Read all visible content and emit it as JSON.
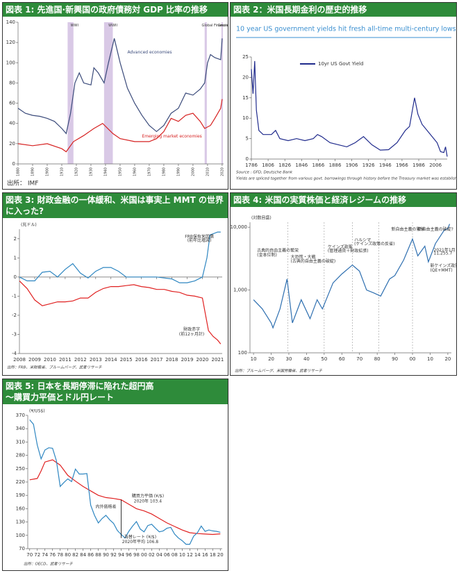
{
  "chart_data": [
    {
      "type": "line",
      "title": "図表 1: 先進国·新興国の政府債務対 GDP 比率の推移",
      "source": "出所： IMF",
      "annotations": [
        "WWI",
        "WWII",
        "Global Financial Crisis",
        "Great Lockdown"
      ],
      "ylim": [
        0,
        140
      ],
      "yticks": [
        0,
        20,
        40,
        60,
        80,
        100,
        120,
        140
      ],
      "xlim": [
        1880,
        2021
      ],
      "xticks": [
        1880,
        1890,
        1900,
        1910,
        1920,
        1930,
        1940,
        1950,
        1960,
        1970,
        1980,
        1990,
        2000,
        2010,
        2020
      ],
      "series": [
        {
          "name": "Advanced economies",
          "color": "#3a4a7a",
          "x": [
            1880,
            1885,
            1890,
            1895,
            1900,
            1905,
            1910,
            1913,
            1916,
            1919,
            1922,
            1925,
            1930,
            1932,
            1935,
            1939,
            1942,
            1946,
            1950,
            1955,
            1960,
            1965,
            1970,
            1975,
            1980,
            1985,
            1990,
            1995,
            2000,
            2005,
            2008,
            2010,
            2012,
            2015,
            2019,
            2020
          ],
          "values": [
            55,
            50,
            48,
            47,
            45,
            42,
            35,
            30,
            50,
            80,
            90,
            80,
            78,
            95,
            90,
            80,
            100,
            124,
            100,
            75,
            60,
            48,
            38,
            32,
            38,
            50,
            55,
            70,
            68,
            74,
            80,
            100,
            108,
            105,
            103,
            124
          ]
        },
        {
          "name": "Emerging market economies",
          "color": "#d62020",
          "x": [
            1880,
            1890,
            1900,
            1910,
            1913,
            1918,
            1925,
            1932,
            1938,
            1945,
            1950,
            1960,
            1970,
            1975,
            1980,
            1985,
            1990,
            1995,
            2000,
            2005,
            2008,
            2012,
            2015,
            2019,
            2020
          ],
          "values": [
            20,
            18,
            20,
            15,
            12,
            22,
            28,
            35,
            40,
            30,
            25,
            22,
            22,
            25,
            32,
            45,
            42,
            48,
            50,
            42,
            35,
            38,
            45,
            55,
            64
          ]
        }
      ]
    },
    {
      "type": "line",
      "title": "図表 2：米国長期金利の歴史的推移",
      "subtitle": "10 year US government yields hit fresh all-time multi-century lows overnight",
      "source": "Source : GFD, Deutsche Bank",
      "note": "Yields are spliced together from various govt. borrowings through history before the Treasury market was established.",
      "ylim": [
        0,
        25
      ],
      "yticks": [
        0,
        5,
        10,
        15,
        20,
        25
      ],
      "xlim": [
        1786,
        2020
      ],
      "xticks": [
        1786,
        1806,
        1826,
        1846,
        1866,
        1886,
        1906,
        1926,
        1946,
        1966,
        1986,
        2006
      ],
      "series": [
        {
          "name": "10yr US Govt Yield",
          "color": "#1f2a8c",
          "x": [
            1786,
            1788,
            1790,
            1792,
            1795,
            1800,
            1810,
            1815,
            1820,
            1830,
            1840,
            1850,
            1860,
            1865,
            1870,
            1880,
            1890,
            1900,
            1910,
            1920,
            1930,
            1940,
            1950,
            1960,
            1970,
            1975,
            1981,
            1985,
            1990,
            2000,
            2008,
            2012,
            2016,
            2018,
            2020
          ],
          "values": [
            22,
            16,
            24,
            12,
            7,
            6,
            6,
            7,
            5,
            4.5,
            5,
            4.5,
            5,
            6,
            5.5,
            4,
            3.5,
            3,
            4,
            5.5,
            3.5,
            2.2,
            2.3,
            4,
            7,
            8,
            15,
            11,
            8.5,
            6,
            4,
            1.8,
            1.6,
            3,
            0.6
          ]
        }
      ]
    },
    {
      "type": "line",
      "title": "図表 3: 財政金融の一体緩和、米国は事実上 MMT の世界に入った?",
      "y_unit": "(兆ドル)",
      "annotations": [
        "(前年比増減)",
        "(前12ヶ月計)"
      ],
      "source": "出所：FRB、米財務省、ブルームバーグ、武者リサーチ",
      "ylim": [
        -4,
        2.5
      ],
      "yticks": [
        -4,
        -3,
        -2,
        -1,
        0,
        1,
        2
      ],
      "xlim": [
        2008,
        2021.3
      ],
      "xticks": [
        2008,
        2009,
        2010,
        2011,
        2012,
        2013,
        2014,
        2015,
        2016,
        2017,
        2018,
        2019,
        2020,
        2021
      ],
      "series": [
        {
          "name": "FRB保有米国債",
          "color": "#2e86c1",
          "x": [
            2008,
            2008.5,
            2009,
            2009.5,
            2010,
            2010.5,
            2011,
            2011.5,
            2012,
            2012.5,
            2013,
            2013.5,
            2014,
            2014.5,
            2015,
            2015.5,
            2016,
            2017,
            2018,
            2018.5,
            2019,
            2019.5,
            2020,
            2020.3,
            2020.5,
            2021,
            2021.2
          ],
          "values": [
            0,
            -0.2,
            -0.2,
            0.25,
            0.3,
            0,
            0.4,
            0.7,
            0.2,
            -0.05,
            0.3,
            0.5,
            0.5,
            0.3,
            0,
            0,
            0,
            0,
            -0.1,
            -0.3,
            -0.3,
            -0.2,
            0,
            1,
            2.2,
            2.35,
            2.35
          ]
        },
        {
          "name": "財政赤字",
          "color": "#e02020",
          "x": [
            2008,
            2008.5,
            2009,
            2009.5,
            2010,
            2010.5,
            2011,
            2011.5,
            2012,
            2012.5,
            2013,
            2013.5,
            2014,
            2014.5,
            2015,
            2015.5,
            2016,
            2016.5,
            2017,
            2017.5,
            2018,
            2018.5,
            2019,
            2019.5,
            2020,
            2020.4,
            2020.7,
            2021,
            2021.2
          ],
          "values": [
            -0.2,
            -0.6,
            -1.2,
            -1.5,
            -1.4,
            -1.3,
            -1.3,
            -1.25,
            -1.1,
            -1.1,
            -0.8,
            -0.6,
            -0.5,
            -0.5,
            -0.45,
            -0.4,
            -0.5,
            -0.55,
            -0.65,
            -0.65,
            -0.75,
            -0.8,
            -0.95,
            -1.0,
            -1.1,
            -2.8,
            -3.1,
            -3.3,
            -3.5
          ]
        }
      ]
    },
    {
      "type": "line",
      "title": "図表 4: 米国の実質株価と経済レジームの推移",
      "y_unit": "(対数目盛)",
      "log_y": true,
      "annotations": [
        "古典的自由主義の繁栄",
        "(金本位制)",
        "大恐慌・大戦",
        "(古典的自由主義の破綻)",
        "ケインズ政策",
        "(管理通貨＋財政拡張)",
        "ハルシマ",
        "(ケインズ政策の反省)",
        "新自由主義の繁栄",
        "新自由主義の破綻?",
        "新ケインズ政策?",
        "(QE+MMT)",
        "2021年1月",
        "11,255.7"
      ],
      "source": "出所：ブルームバーグ、米国労働省、武者リサーチ",
      "ylim": [
        100,
        12000
      ],
      "yticks": [
        100,
        {
          "value": 1000,
          "label": "1,000"
        },
        {
          "value": 10000,
          "label": "10,000"
        }
      ],
      "xlim": [
        1908,
        2022
      ],
      "xticks": [
        {
          "value": 1910,
          "label": "10"
        },
        {
          "value": 1920,
          "label": "20"
        },
        {
          "value": 1930,
          "label": "30"
        },
        {
          "value": 1940,
          "label": "40"
        },
        {
          "value": 1950,
          "label": "50"
        },
        {
          "value": 1960,
          "label": "60"
        },
        {
          "value": 1970,
          "label": "70"
        },
        {
          "value": 1980,
          "label": "80"
        },
        {
          "value": 1990,
          "label": "90"
        },
        {
          "value": 2000,
          "label": "00"
        },
        {
          "value": 2010,
          "label": "10"
        },
        {
          "value": 2020,
          "label": "20"
        }
      ],
      "series": [
        {
          "color": "#2e6fb0",
          "x": [
            1910,
            1915,
            1920,
            1921,
            1925,
            1929,
            1932,
            1937,
            1942,
            1946,
            1949,
            1955,
            1960,
            1966,
            1970,
            1974,
            1978,
            1982,
            1987,
            1990,
            1995,
            2000,
            2003,
            2007,
            2009,
            2013,
            2018,
            2020,
            2021
          ],
          "values": [
            700,
            500,
            300,
            250,
            500,
            1500,
            300,
            700,
            350,
            700,
            500,
            1300,
            1800,
            2500,
            2000,
            1000,
            900,
            800,
            1500,
            1700,
            3000,
            6500,
            3500,
            5000,
            2800,
            5500,
            9000,
            9500,
            11255.7
          ]
        }
      ]
    },
    {
      "type": "line",
      "title": "図表 5: 日本を長期停滞に陥れた超円高\n～購買力平価とドル円レート",
      "y_unit": "(¥/US$)",
      "annotations": [
        "2020年 103.4",
        "内外価格差",
        "2020年平均 106.8"
      ],
      "source": "出所：OECD、武者リサーチ",
      "ylim": [
        70,
        370
      ],
      "yticks": [
        70,
        100,
        130,
        160,
        190,
        220,
        250,
        280,
        310,
        340,
        370
      ],
      "xlim": [
        1969.5,
        2020.5
      ],
      "xticks": [
        {
          "value": 1970,
          "label": "70"
        },
        {
          "value": 1972,
          "label": "72"
        },
        {
          "value": 1974,
          "label": "74"
        },
        {
          "value": 1976,
          "label": "76"
        },
        {
          "value": 1978,
          "label": "78"
        },
        {
          "value": 1980,
          "label": "80"
        },
        {
          "value": 1982,
          "label": "82"
        },
        {
          "value": 1984,
          "label": "84"
        },
        {
          "value": 1986,
          "label": "86"
        },
        {
          "value": 1988,
          "label": "88"
        },
        {
          "value": 1990,
          "label": "90"
        },
        {
          "value": 1992,
          "label": "92"
        },
        {
          "value": 1994,
          "label": "94"
        },
        {
          "value": 1996,
          "label": "96"
        },
        {
          "value": 1998,
          "label": "98"
        },
        {
          "value": 2000,
          "label": "00"
        },
        {
          "value": 2002,
          "label": "02"
        },
        {
          "value": 2004,
          "label": "04"
        },
        {
          "value": 2006,
          "label": "06"
        },
        {
          "value": 2008,
          "label": "08"
        },
        {
          "value": 2010,
          "label": "10"
        },
        {
          "value": 2012,
          "label": "12"
        },
        {
          "value": 2014,
          "label": "14"
        },
        {
          "value": 2016,
          "label": "16"
        },
        {
          "value": 2018,
          "label": "18"
        },
        {
          "value": 2020,
          "label": "20"
        }
      ],
      "series": [
        {
          "name": "購買力平価 (¥/$)",
          "color": "#e02020",
          "x": [
            1970,
            1972,
            1973,
            1974,
            1976,
            1978,
            1980,
            1982,
            1984,
            1986,
            1988,
            1990,
            1992,
            1994,
            1996,
            1998,
            2000,
            2002,
            2004,
            2006,
            2008,
            2010,
            2012,
            2014,
            2016,
            2018,
            2020
          ],
          "values": [
            225,
            228,
            245,
            265,
            270,
            258,
            235,
            222,
            210,
            200,
            190,
            185,
            183,
            180,
            170,
            160,
            155,
            148,
            138,
            128,
            120,
            112,
            106,
            104,
            103,
            102,
            103.4
          ]
        },
        {
          "name": "為替レート (¥/$)",
          "color": "#2e86c1",
          "x": [
            1970,
            1971,
            1972,
            1973,
            1974,
            1975,
            1976,
            1977,
            1978,
            1979,
            1980,
            1981,
            1982,
            1983,
            1984,
            1985,
            1986,
            1987,
            1988,
            1989,
            1990,
            1991,
            1992,
            1993,
            1994,
            1995,
            1996,
            1997,
            1998,
            1999,
            2000,
            2001,
            2002,
            2003,
            2004,
            2005,
            2006,
            2007,
            2008,
            2009,
            2010,
            2011,
            2012,
            2013,
            2014,
            2015,
            2016,
            2017,
            2018,
            2019,
            2020
          ],
          "values": [
            360,
            350,
            303,
            272,
            292,
            297,
            296,
            268,
            210,
            219,
            227,
            221,
            249,
            238,
            238,
            239,
            168,
            145,
            128,
            138,
            145,
            135,
            127,
            111,
            102,
            94,
            109,
            121,
            131,
            114,
            108,
            122,
            125,
            116,
            108,
            110,
            116,
            118,
            103,
            94,
            88,
            80,
            80,
            98,
            106,
            121,
            109,
            112,
            110,
            109,
            106.8
          ]
        }
      ]
    }
  ]
}
